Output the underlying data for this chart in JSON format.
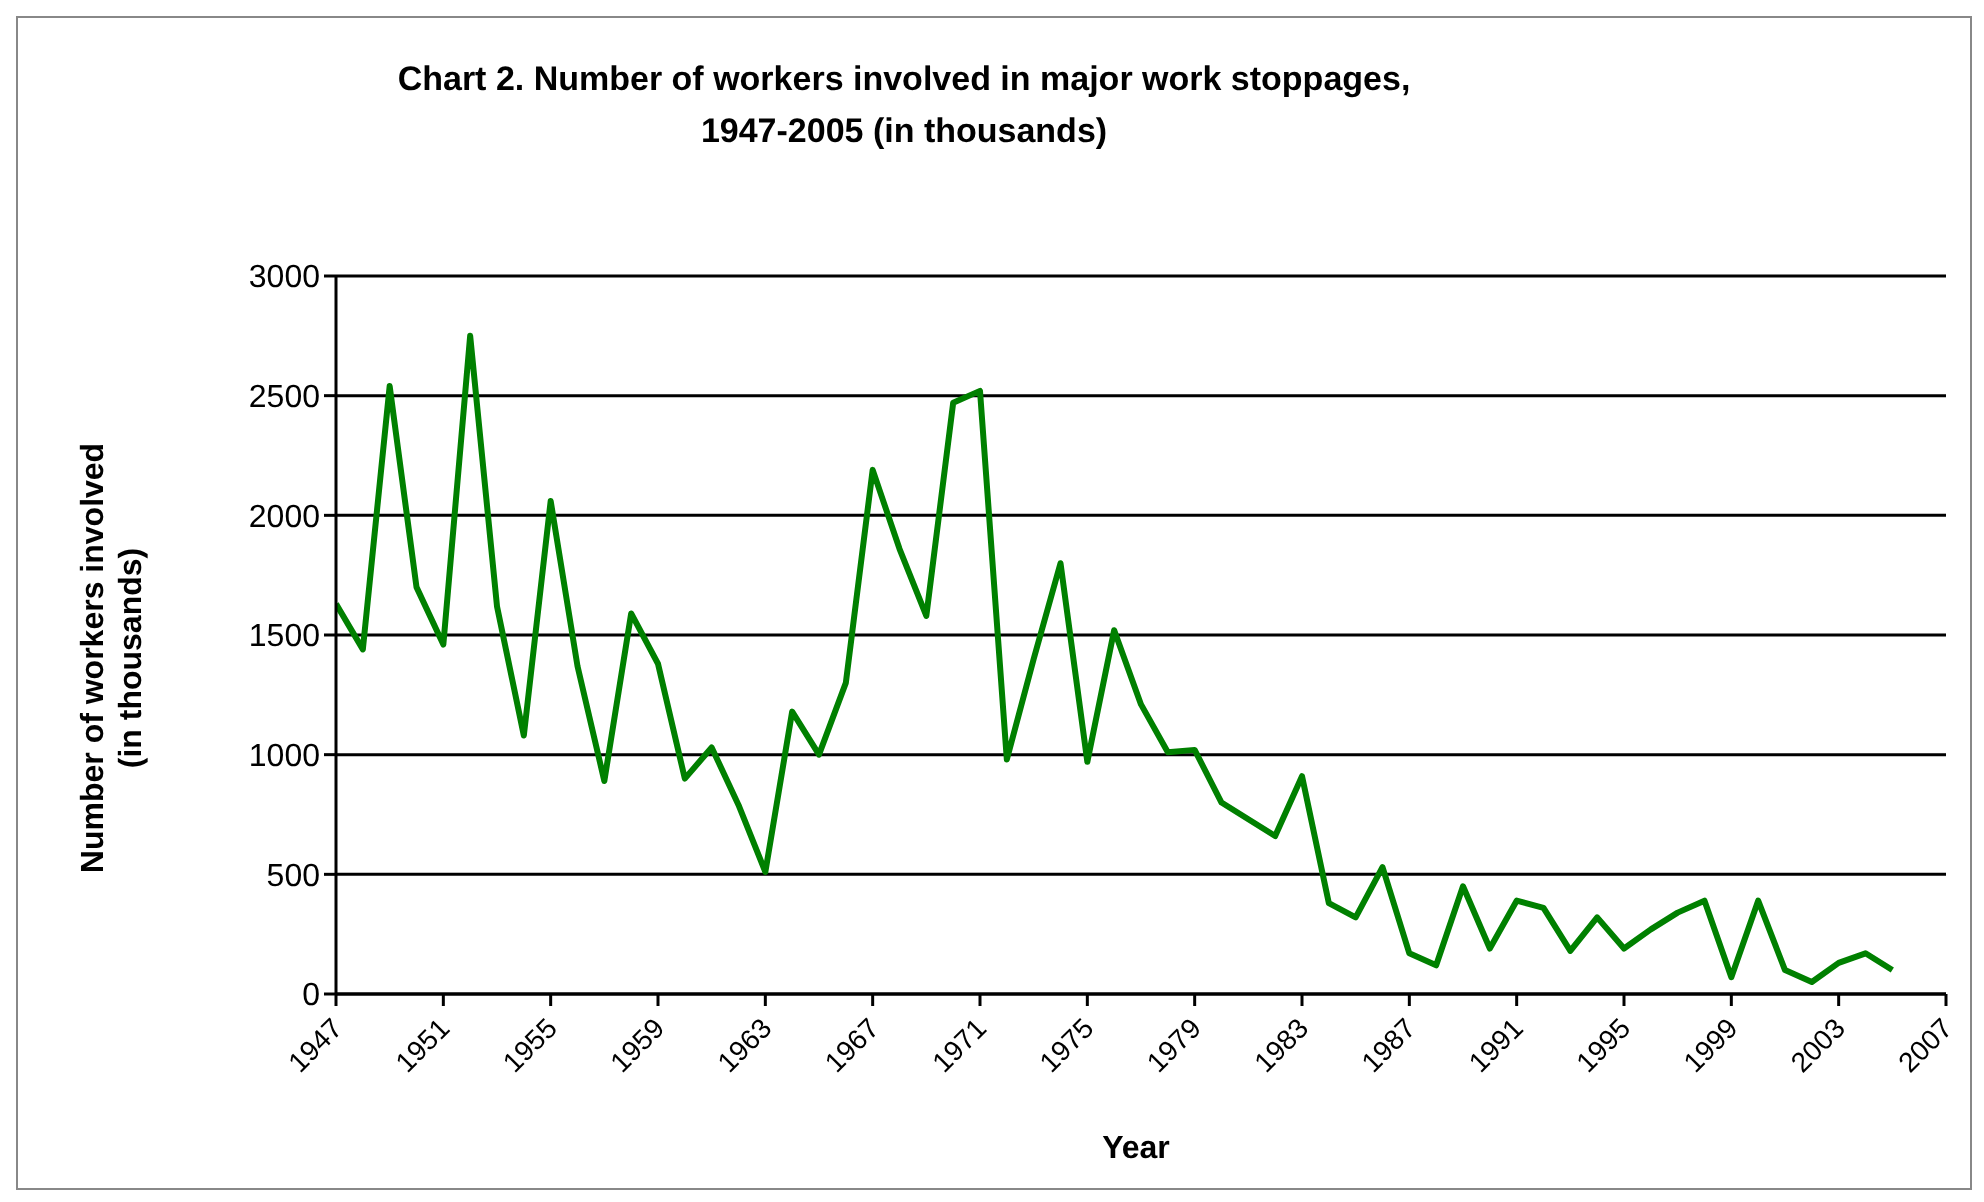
{
  "chart_data": {
    "type": "line",
    "title": "Chart 2. Number of workers involved in major work stoppages,\n1947-2005 (in thousands)",
    "xlabel": "Year",
    "ylabel": "Number of workers involved\n(in thousands)",
    "x": [
      1947,
      1948,
      1949,
      1950,
      1951,
      1952,
      1953,
      1954,
      1955,
      1956,
      1957,
      1958,
      1959,
      1960,
      1961,
      1962,
      1963,
      1964,
      1965,
      1966,
      1967,
      1968,
      1969,
      1970,
      1971,
      1972,
      1973,
      1974,
      1975,
      1976,
      1977,
      1978,
      1979,
      1980,
      1981,
      1982,
      1983,
      1984,
      1985,
      1986,
      1987,
      1988,
      1989,
      1990,
      1991,
      1992,
      1993,
      1994,
      1995,
      1996,
      1997,
      1998,
      1999,
      2000,
      2001,
      2002,
      2003,
      2004,
      2005
    ],
    "series": [
      {
        "color": "#008000",
        "values": [
          1630,
          1440,
          2540,
          1700,
          1460,
          2750,
          1620,
          1080,
          2060,
          1370,
          890,
          1590,
          1380,
          900,
          1030,
          790,
          510,
          1180,
          1000,
          1300,
          2190,
          1860,
          1580,
          2470,
          2520,
          980,
          1400,
          1800,
          970,
          1520,
          1210,
          1010,
          1020,
          800,
          730,
          660,
          910,
          380,
          320,
          530,
          170,
          120,
          450,
          190,
          390,
          360,
          180,
          320,
          190,
          270,
          340,
          390,
          70,
          390,
          100,
          50,
          130,
          170,
          100
        ]
      }
    ],
    "xlim": [
      1947,
      2007
    ],
    "xticks": [
      1947,
      1951,
      1955,
      1959,
      1963,
      1967,
      1971,
      1975,
      1979,
      1983,
      1987,
      1991,
      1995,
      1999,
      2003,
      2007
    ],
    "ylim": [
      0,
      3000
    ],
    "yticks": [
      0,
      500,
      1000,
      1500,
      2000,
      2500,
      3000
    ],
    "grid": "y",
    "legend": false
  }
}
